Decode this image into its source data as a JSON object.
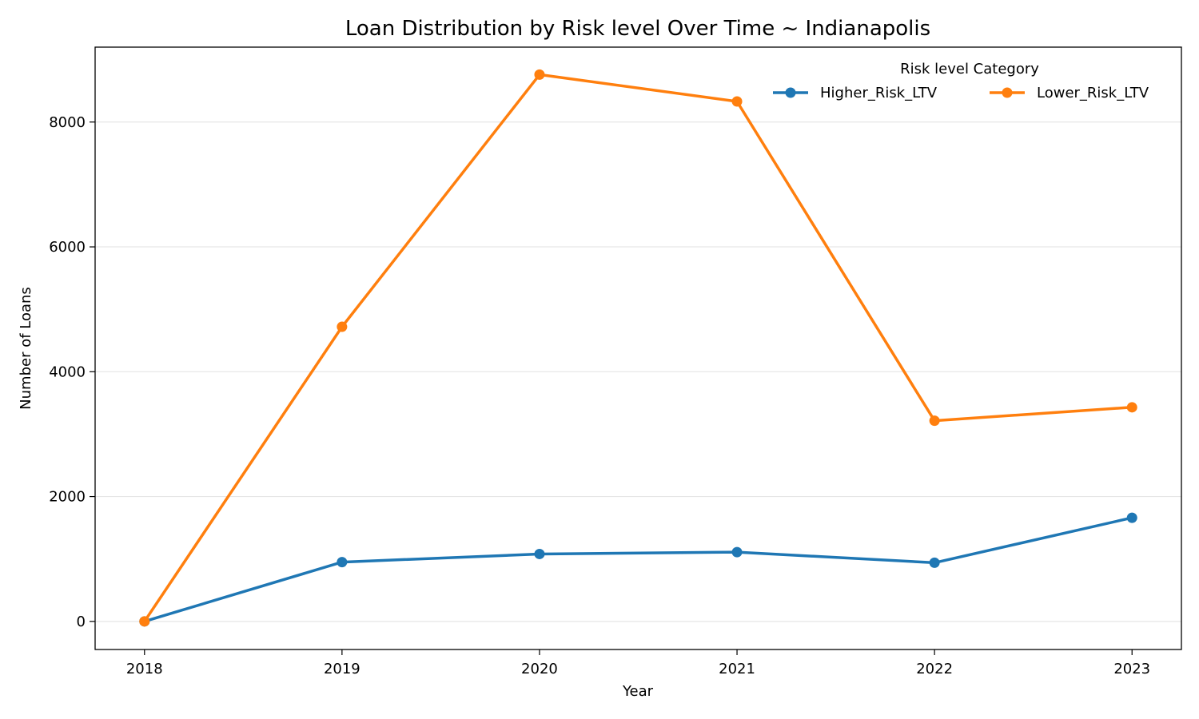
{
  "chart_data": {
    "type": "line",
    "title": "Loan Distribution by Risk level Over Time ~ Indianapolis",
    "xlabel": "Year",
    "ylabel": "Number of Loans",
    "x": [
      2018,
      2019,
      2020,
      2021,
      2022,
      2023
    ],
    "x_tick_labels": [
      "2018",
      "2019",
      "2020",
      "2021",
      "2022",
      "2023"
    ],
    "y_ticks": [
      0,
      2000,
      4000,
      6000,
      8000
    ],
    "y_tick_labels": [
      "0",
      "2000",
      "4000",
      "6000",
      "8000"
    ],
    "xlim": [
      2017.75,
      2023.25
    ],
    "ylim": [
      -450,
      9200
    ],
    "grid": "horizontal",
    "legend": {
      "title": "Risk level Category",
      "placement": "top-right"
    },
    "series": [
      {
        "name": "Higher_Risk_LTV",
        "color": "#1f77b4",
        "values": [
          0,
          950,
          1080,
          1110,
          940,
          1660
        ]
      },
      {
        "name": "Lower_Risk_LTV",
        "color": "#ff7f0e",
        "values": [
          0,
          4720,
          8760,
          8330,
          3215,
          3430
        ]
      }
    ]
  }
}
